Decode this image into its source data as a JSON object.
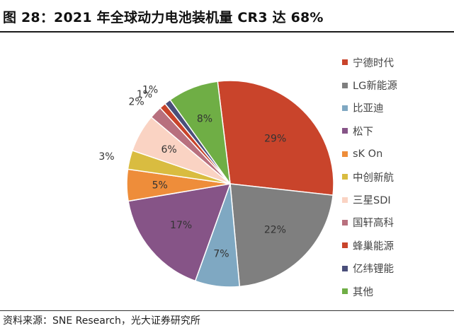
{
  "title": "图 28：2021 年全球动力电池装机量 CR3 达 68%",
  "source": "资料来源：SNE Research，光大证券研究所",
  "chart_data": {
    "type": "pie",
    "title": "图 28：2021 年全球动力电池装机量 CR3 达 68%",
    "unit": "%",
    "legend_position": "right",
    "slices": [
      {
        "name": "宁德时代",
        "value": 29,
        "label": "29%",
        "color": "#C9442B"
      },
      {
        "name": "LG新能源",
        "value": 22,
        "label": "22%",
        "color": "#7F7F7F"
      },
      {
        "name": "比亚迪",
        "value": 7,
        "label": "7%",
        "color": "#7FA8C2"
      },
      {
        "name": "松下",
        "value": 17,
        "label": "17%",
        "color": "#865487"
      },
      {
        "name": "sK On",
        "value": 5,
        "label": "5%",
        "color": "#EE8D3A"
      },
      {
        "name": "中创新航",
        "value": 3,
        "label": "3%",
        "color": "#D9BC40"
      },
      {
        "name": "三星SDI",
        "value": 6,
        "label": "6%",
        "color": "#FAD3C3"
      },
      {
        "name": "国轩高科",
        "value": 2,
        "label": "2%",
        "color": "#B8707E"
      },
      {
        "name": "蜂巢能源",
        "value": 1,
        "label": "1%",
        "color": "#C9442B"
      },
      {
        "name": "亿纬锂能",
        "value": 1,
        "label": "1%",
        "color": "#4A4F7A"
      },
      {
        "name": "其他",
        "value": 8,
        "label": "8%",
        "color": "#6FAE45"
      }
    ]
  }
}
